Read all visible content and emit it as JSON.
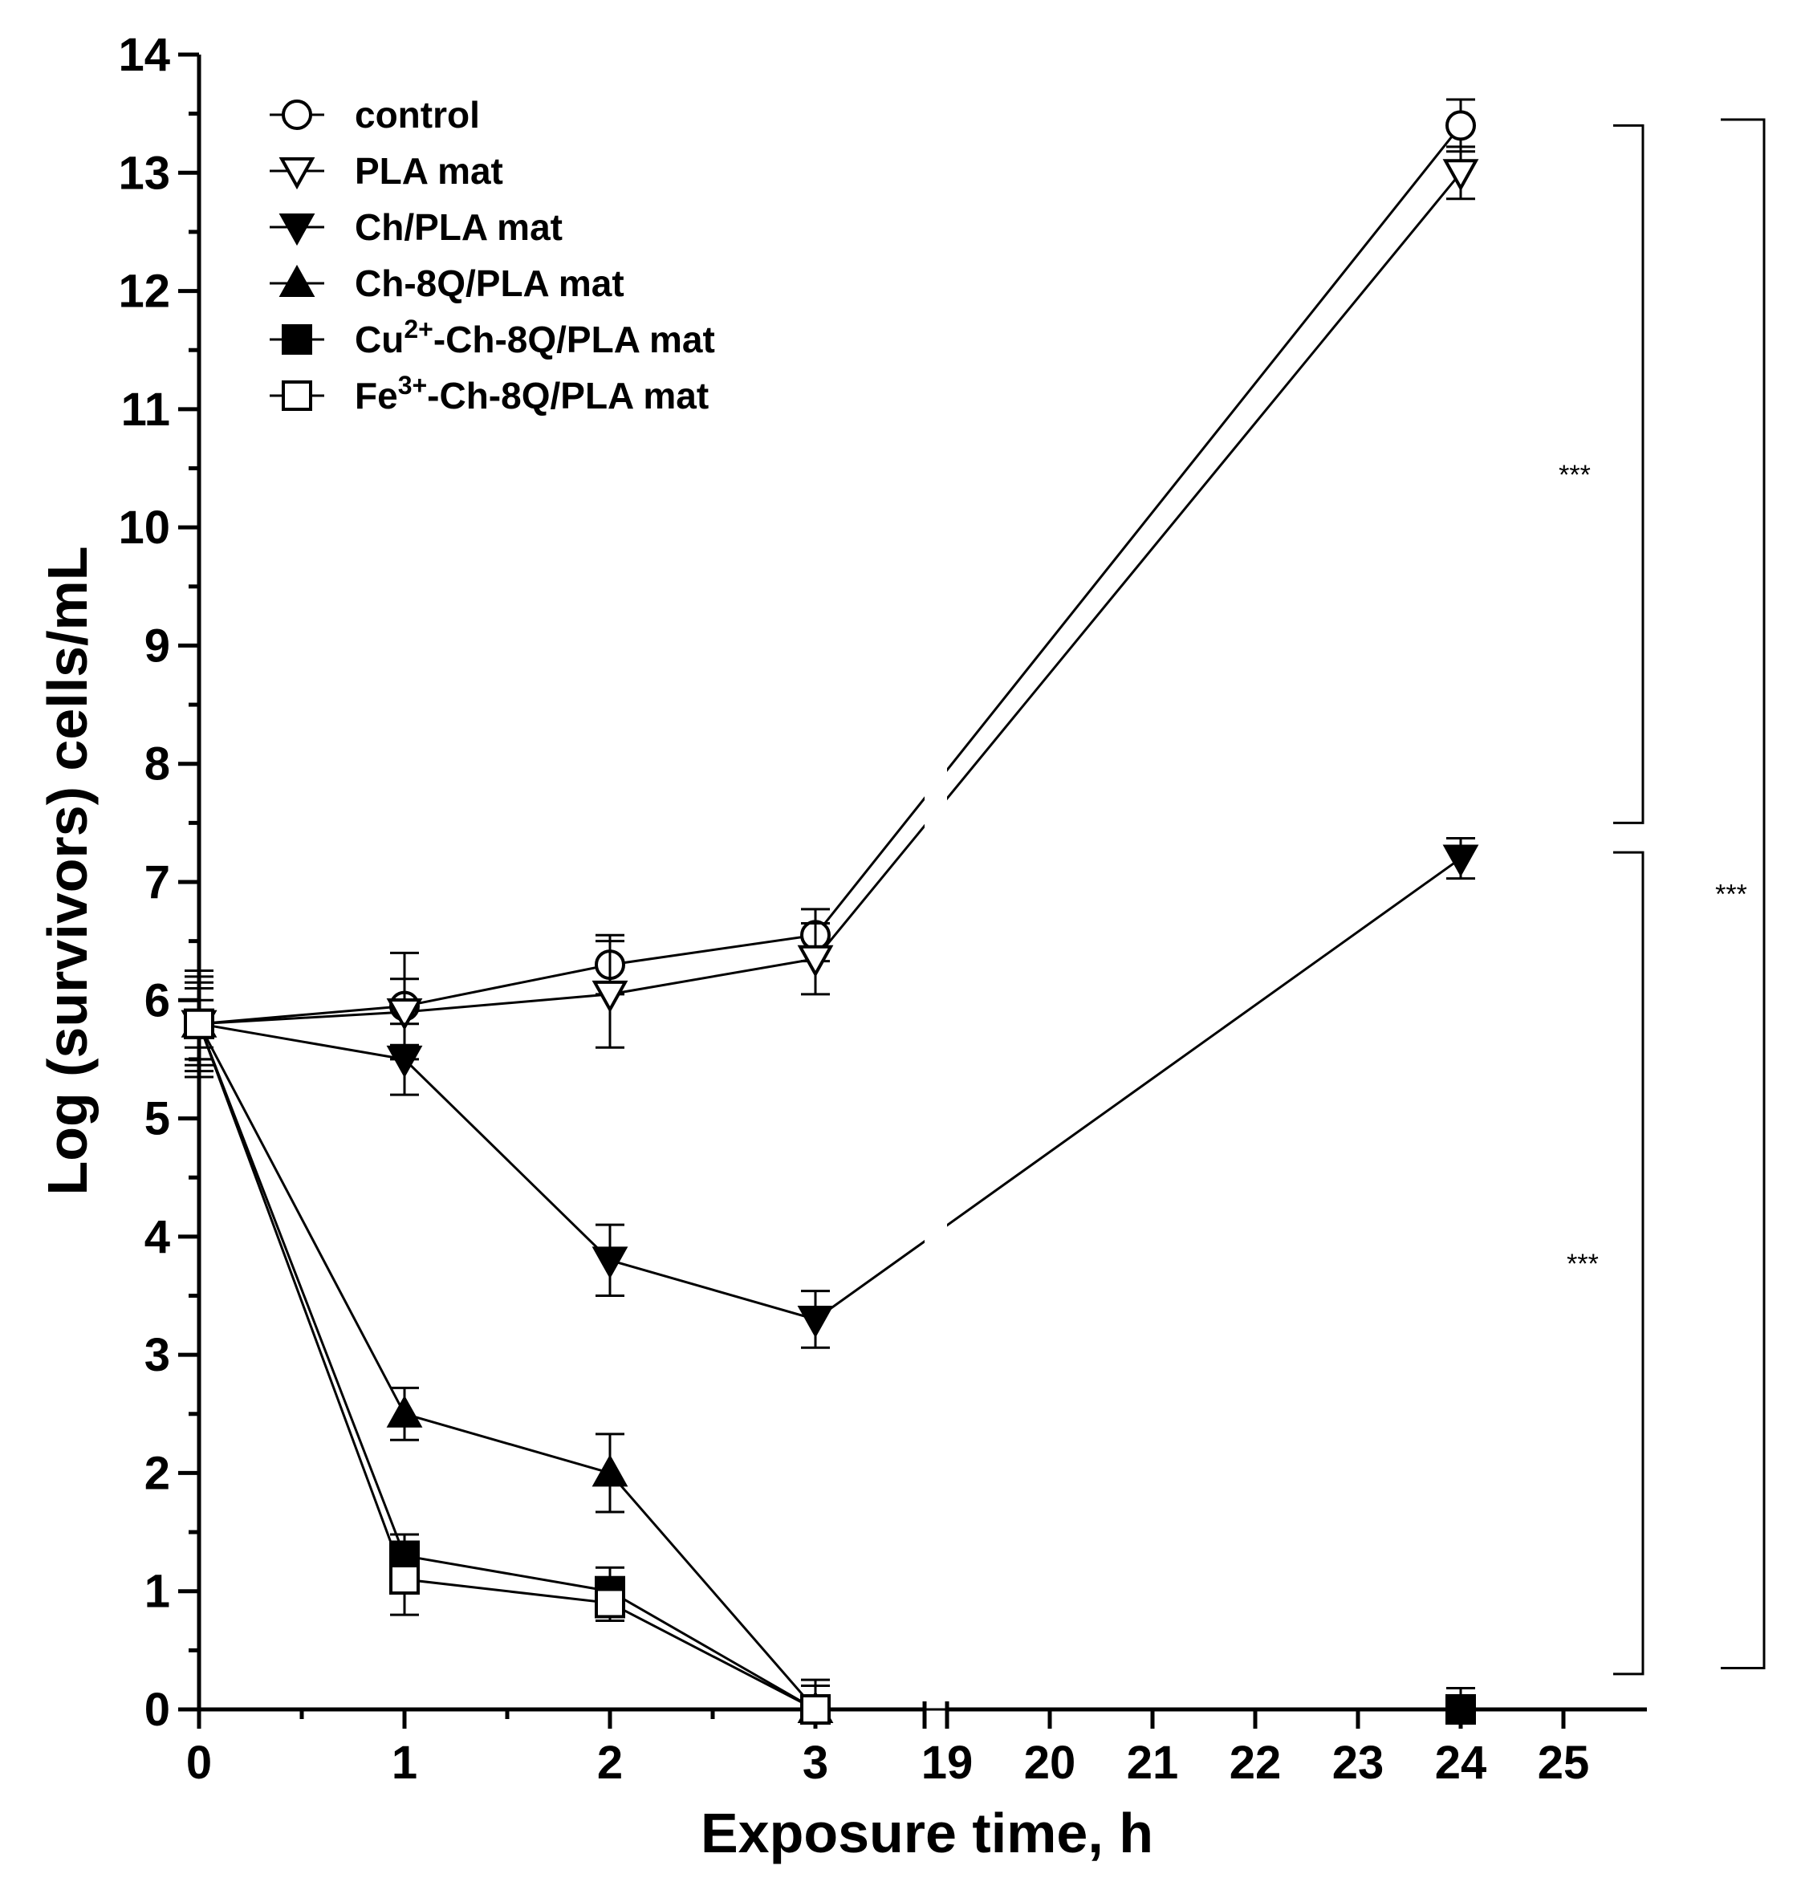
{
  "chart_data": {
    "type": "line",
    "title": "",
    "xlabel": "Exposure time, h",
    "ylabel": "Log (survivors) cells/mL",
    "ylim": [
      0,
      14
    ],
    "x_broken_axis": {
      "left_segment": [
        0,
        3
      ],
      "right_segment": [
        19,
        25
      ],
      "left_ticks": [
        "0",
        "1",
        "2",
        "3"
      ],
      "right_ticks": [
        "19",
        "20",
        "21",
        "22",
        "23",
        "24",
        "25"
      ]
    },
    "y_ticks": [
      "0",
      "1",
      "2",
      "3",
      "4",
      "5",
      "6",
      "7",
      "8",
      "9",
      "10",
      "11",
      "12",
      "13",
      "14"
    ],
    "x": [
      0,
      1,
      2,
      3,
      24
    ],
    "series": [
      {
        "name": "control",
        "legend_prefix": "",
        "legend_sup": "",
        "legend_suffix": "control",
        "marker": "circle-open",
        "values": [
          5.8,
          5.95,
          6.3,
          6.55,
          13.4
        ],
        "errors": [
          0.45,
          0.45,
          0.25,
          0.22,
          0.22
        ]
      },
      {
        "name": "PLA mat",
        "legend_prefix": "",
        "legend_sup": "",
        "legend_suffix": "PLA mat",
        "marker": "triangle-down-open",
        "values": [
          5.8,
          5.9,
          6.05,
          6.35,
          13.0
        ],
        "errors": [
          0.35,
          0.28,
          0.45,
          0.3,
          0.22
        ]
      },
      {
        "name": "Ch/PLA mat",
        "legend_prefix": "",
        "legend_sup": "",
        "legend_suffix": "Ch/PLA mat",
        "marker": "triangle-down-filled",
        "values": [
          5.8,
          5.5,
          3.8,
          3.3,
          7.2
        ],
        "errors": [
          0.3,
          0.3,
          0.3,
          0.24,
          0.17
        ]
      },
      {
        "name": "Ch-8Q/PLA mat",
        "legend_prefix": "",
        "legend_sup": "",
        "legend_suffix": "Ch-8Q/PLA mat",
        "marker": "triangle-up-filled",
        "values": [
          5.8,
          2.5,
          2.0,
          0.0,
          null
        ],
        "errors": [
          0.2,
          0.22,
          0.33,
          0.25,
          null
        ]
      },
      {
        "name": "Cu2+-Ch-8Q/PLA mat",
        "legend_prefix": "Cu",
        "legend_sup": "2+",
        "legend_suffix": "-Ch-8Q/PLA mat",
        "marker": "square-filled",
        "values": [
          5.8,
          1.3,
          1.0,
          0.0,
          0.0
        ],
        "errors": [
          0.4,
          0.18,
          0.2,
          0.2,
          0.18
        ]
      },
      {
        "name": "Fe3+-Ch-8Q/PLA mat",
        "legend_prefix": "Fe",
        "legend_sup": "3+",
        "legend_suffix": "-Ch-8Q/PLA mat",
        "marker": "square-open",
        "values": [
          5.8,
          1.1,
          0.9,
          0.0,
          null
        ],
        "errors": [
          0.3,
          0.3,
          0.15,
          0.2,
          null
        ]
      }
    ],
    "significance": [
      {
        "label": "***",
        "from_value": 13.4,
        "to_value": 7.5
      },
      {
        "label": "***",
        "from_value": 7.25,
        "to_value": 0.3
      },
      {
        "label": "***",
        "from_value": 13.45,
        "to_value": 0.35
      }
    ],
    "legend_position": "top-left",
    "grid": false
  }
}
